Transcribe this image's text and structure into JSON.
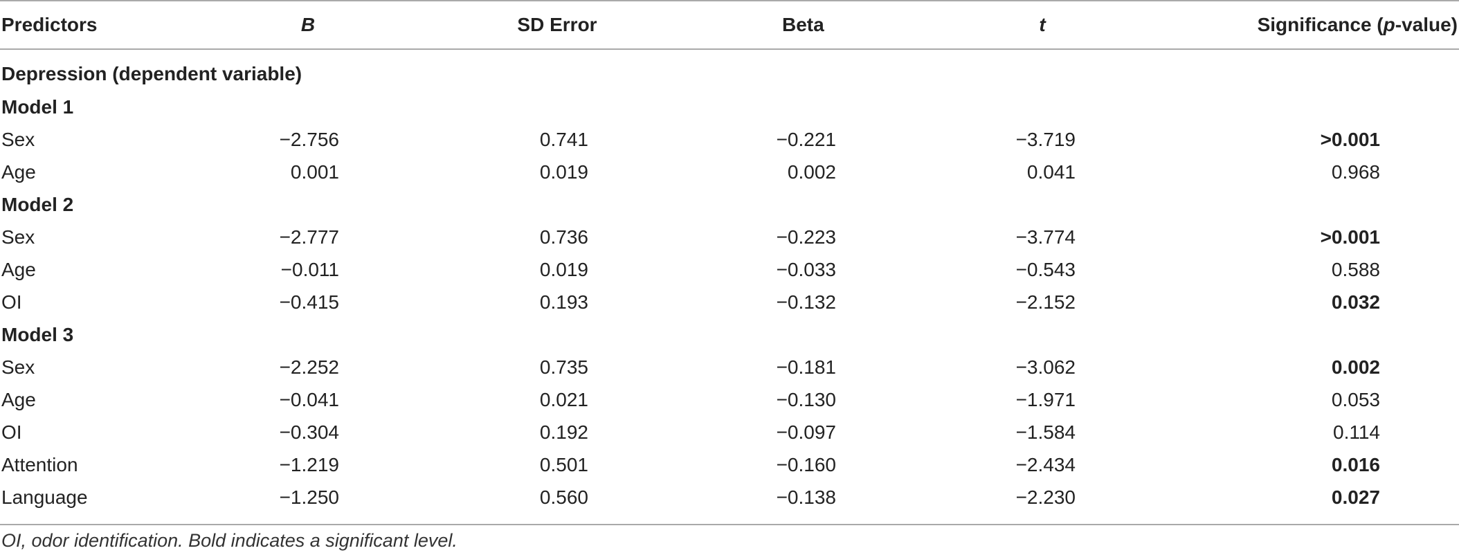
{
  "table": {
    "headers": {
      "predictors": "Predictors",
      "b": "B",
      "sd_error": "SD Error",
      "beta": "Beta",
      "t": "t",
      "sig_prefix": "Significance (",
      "sig_p": "p",
      "sig_suffix": "-value)"
    },
    "dependent": "Depression (dependent variable)",
    "model1": {
      "title": "Model 1",
      "rows": [
        {
          "predictor": "Sex",
          "b": "−2.756",
          "sd": "0.741",
          "beta": "−0.221",
          "t": "−3.719",
          "sig": ">0.001",
          "sig_bold": true
        },
        {
          "predictor": "Age",
          "b": "0.001",
          "sd": "0.019",
          "beta": "0.002",
          "t": "0.041",
          "sig": "0.968",
          "sig_bold": false
        }
      ]
    },
    "model2": {
      "title": "Model 2",
      "rows": [
        {
          "predictor": "Sex",
          "b": "−2.777",
          "sd": "0.736",
          "beta": "−0.223",
          "t": "−3.774",
          "sig": ">0.001",
          "sig_bold": true
        },
        {
          "predictor": "Age",
          "b": "−0.011",
          "sd": "0.019",
          "beta": "−0.033",
          "t": "−0.543",
          "sig": "0.588",
          "sig_bold": false
        },
        {
          "predictor": "OI",
          "b": "−0.415",
          "sd": "0.193",
          "beta": "−0.132",
          "t": "−2.152",
          "sig": "0.032",
          "sig_bold": true
        }
      ]
    },
    "model3": {
      "title": "Model 3",
      "rows": [
        {
          "predictor": "Sex",
          "b": "−2.252",
          "sd": "0.735",
          "beta": "−0.181",
          "t": "−3.062",
          "sig": "0.002",
          "sig_bold": true
        },
        {
          "predictor": "Age",
          "b": "−0.041",
          "sd": "0.021",
          "beta": "−0.130",
          "t": "−1.971",
          "sig": "0.053",
          "sig_bold": false
        },
        {
          "predictor": "OI",
          "b": "−0.304",
          "sd": "0.192",
          "beta": "−0.097",
          "t": "−1.584",
          "sig": "0.114",
          "sig_bold": false
        },
        {
          "predictor": "Attention",
          "b": "−1.219",
          "sd": "0.501",
          "beta": "−0.160",
          "t": "−2.434",
          "sig": "0.016",
          "sig_bold": true
        },
        {
          "predictor": "Language",
          "b": "−1.250",
          "sd": "0.560",
          "beta": "−0.138",
          "t": "−2.230",
          "sig": "0.027",
          "sig_bold": true
        }
      ]
    }
  },
  "footnote": "OI, odor identification. Bold indicates a significant level."
}
